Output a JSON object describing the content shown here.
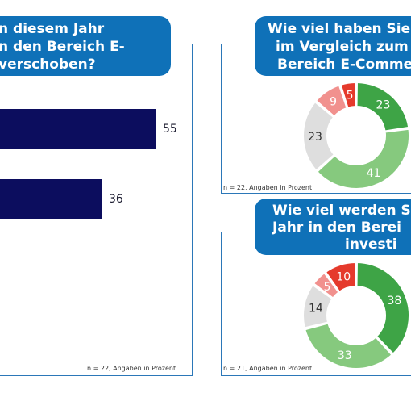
{
  "left_panel": {
    "title_lines": [
      "n diesem Jahr",
      "n den Bereich E-",
      "verschoben?"
    ],
    "note": "n = 22, Angaben in Prozent"
  },
  "top_right_panel": {
    "title_lines": [
      "Wie viel haben Sie",
      "im Vergleich zum",
      "Bereich E-Comme"
    ],
    "note": "n = 22, Angaben in Prozent"
  },
  "bottom_right_panel": {
    "title_lines": [
      "Wie viel werden S",
      "Jahr in den Berei",
      "investi"
    ],
    "note": "n = 21, Angaben in Prozent"
  },
  "colors": {
    "frame": "#2b77b8",
    "title_bg": "#0f71b8",
    "bar": "#0c0d5e",
    "dark_green": "#3ea446",
    "light_green": "#86c97e",
    "grey": "#dedede",
    "light_red": "#f1918e",
    "red": "#e53a2c"
  },
  "chart_data": [
    {
      "type": "bar",
      "orientation": "horizontal",
      "values": [
        55,
        36
      ],
      "title": "",
      "xlim": [
        0,
        100
      ]
    },
    {
      "type": "pie",
      "style": "donut",
      "values": [
        23,
        41,
        23,
        9,
        5
      ],
      "slice_colors": [
        "#3ea446",
        "#86c97e",
        "#dedede",
        "#f1918e",
        "#e53a2c"
      ]
    },
    {
      "type": "pie",
      "style": "donut",
      "values": [
        38,
        33,
        14,
        5,
        10
      ],
      "slice_colors": [
        "#3ea446",
        "#86c97e",
        "#dedede",
        "#f1918e",
        "#e53a2c"
      ]
    }
  ]
}
